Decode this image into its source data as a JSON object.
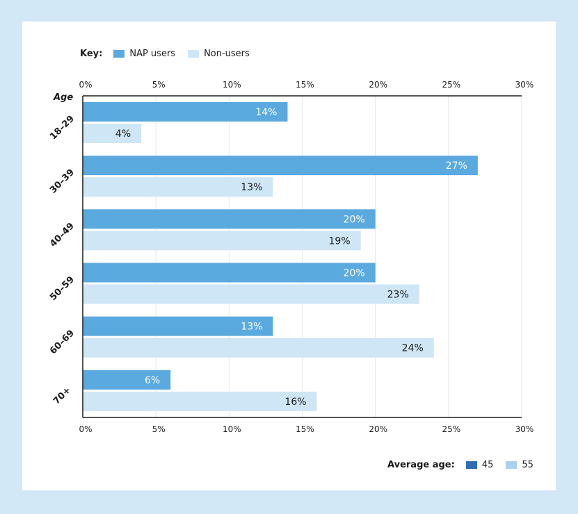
{
  "key": {
    "title": "Key:",
    "items": [
      {
        "label": "NAP users",
        "color": "#5aa9df"
      },
      {
        "label": "Non-users",
        "color": "#cfe6f6"
      }
    ]
  },
  "average_age": {
    "title": "Average age:",
    "items": [
      {
        "label": "45",
        "color": "#2f6db5"
      },
      {
        "label": "55",
        "color": "#a8d1ef"
      }
    ]
  },
  "colors": {
    "background": "#d3e8f6",
    "nap_users": "#5aa9df",
    "non_users": "#cfe6f6"
  },
  "chart_data": {
    "type": "bar",
    "orientation": "horizontal",
    "y_title": "Age",
    "categories": [
      "18–29",
      "30–39",
      "40–49",
      "50–59",
      "60–69",
      "70+"
    ],
    "series": [
      {
        "name": "NAP users",
        "values": [
          14,
          27,
          20,
          20,
          13,
          6
        ],
        "labels": [
          "14%",
          "27%",
          "20%",
          "20%",
          "13%",
          "6%"
        ]
      },
      {
        "name": "Non-users",
        "values": [
          4,
          13,
          19,
          23,
          24,
          16
        ],
        "labels": [
          "4%",
          "13%",
          "19%",
          "23%",
          "24%",
          "16%"
        ]
      }
    ],
    "xlim": [
      0,
      30
    ],
    "xticks": [
      0,
      5,
      10,
      15,
      20,
      25,
      30
    ],
    "xtick_labels": [
      "0%",
      "5%",
      "10%",
      "15%",
      "20%",
      "25%",
      "30%"
    ],
    "grid": true,
    "legend": "top-left"
  }
}
